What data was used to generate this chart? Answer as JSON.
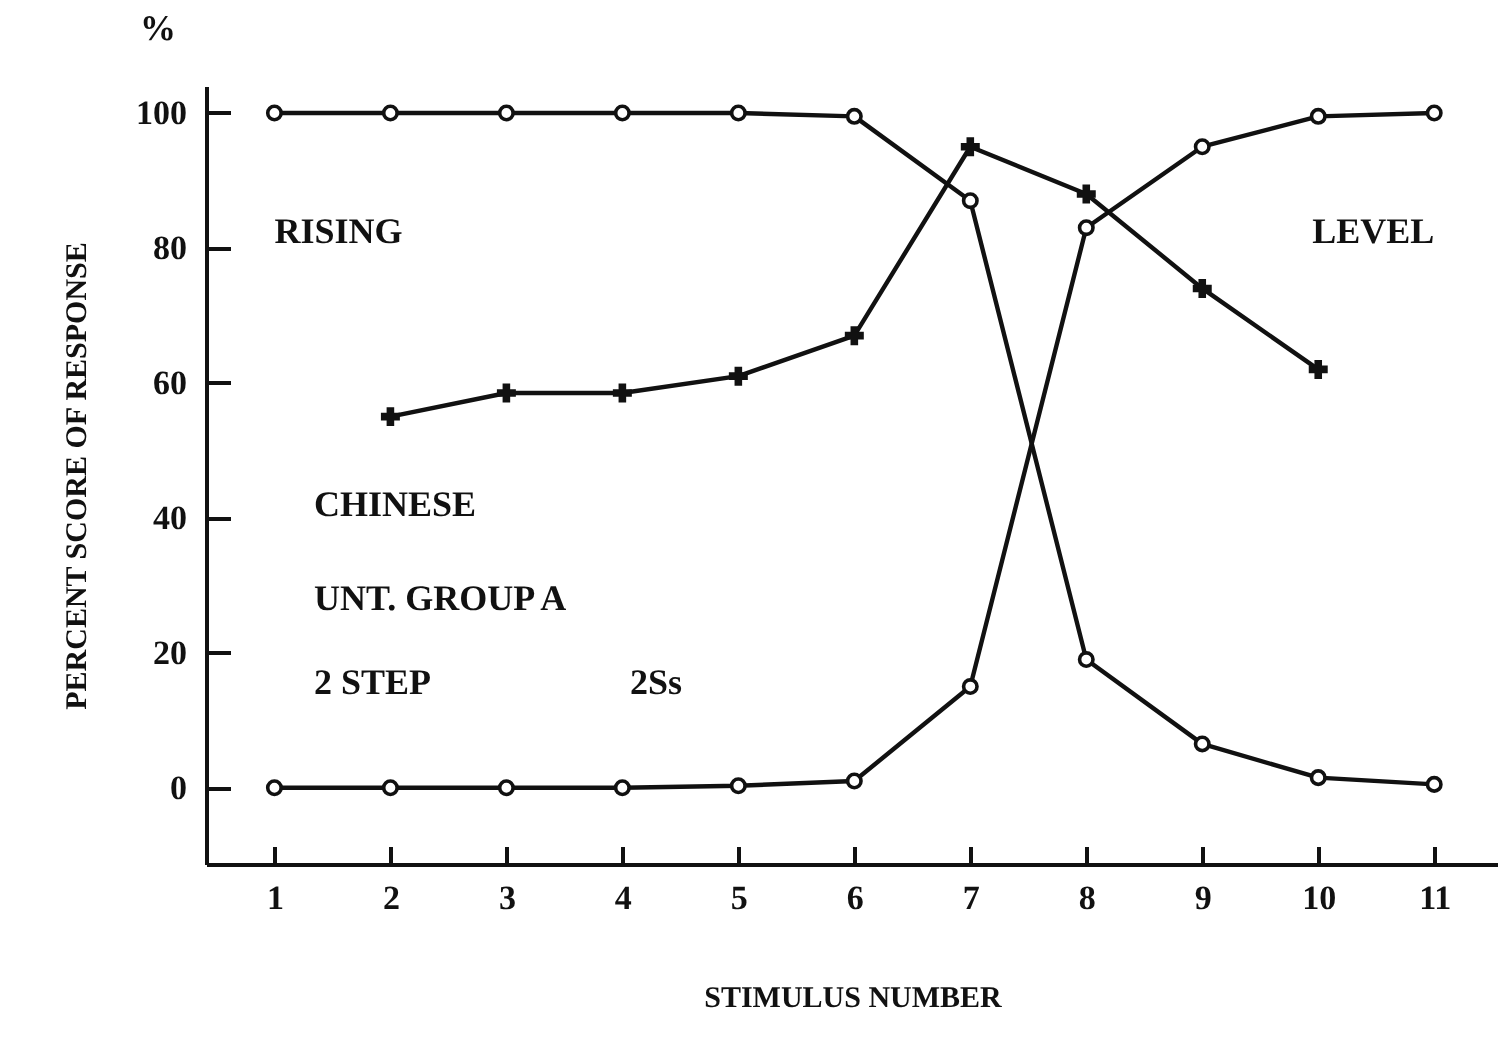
{
  "chart_data": {
    "type": "line",
    "xlabel": "STIMULUS NUMBER",
    "ylabel": "PERCENT SCORE OF RESPONSE",
    "x": [
      1,
      2,
      3,
      4,
      5,
      6,
      7,
      8,
      9,
      10,
      11
    ],
    "series": [
      {
        "name": "RISING",
        "color": "#111111",
        "marker": "circle",
        "values": [
          100,
          100,
          100,
          100,
          100,
          99.5,
          87,
          19,
          6.5,
          1.5,
          0.5
        ]
      },
      {
        "name": "LEVEL",
        "color": "#111111",
        "marker": "circle",
        "values": [
          0,
          0,
          0,
          0,
          0.3,
          1,
          15,
          83,
          95,
          99.5,
          100
        ]
      },
      {
        "color": "#111111",
        "marker": "cross",
        "values": [
          null,
          55,
          58.5,
          58.5,
          61,
          67,
          95,
          88,
          74,
          62,
          null
        ]
      }
    ],
    "xlim": [
      0.41,
      11.55
    ],
    "xticks": [
      1,
      2,
      3,
      4,
      5,
      6,
      7,
      8,
      9,
      10,
      11
    ],
    "ylim": [
      -11.3,
      104
    ],
    "yticks": [
      0,
      20,
      40,
      60,
      80,
      100
    ],
    "annotations": [
      "%",
      "CHINESE",
      "UNT. GROUP A",
      "2 STEP",
      "2Ss"
    ]
  }
}
